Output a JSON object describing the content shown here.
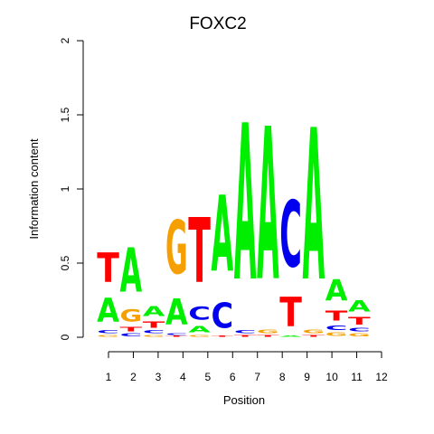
{
  "chart_data": {
    "type": "sequence-logo",
    "title": "FOXC2",
    "xlabel": "Position",
    "ylabel": "Information content",
    "ylim": [
      0,
      2
    ],
    "yticks": [
      "0",
      "0.5",
      "1",
      "1.5",
      "2"
    ],
    "positions": [
      "1",
      "2",
      "3",
      "4",
      "5",
      "6",
      "7",
      "8",
      "9",
      "10",
      "11",
      "12"
    ],
    "colors": {
      "A": "#00ee00",
      "C": "#0000ee",
      "G": "#f5a000",
      "T": "#ff0000"
    },
    "letters": [
      [
        {
          "base": "G",
          "height": 0.02
        },
        {
          "base": "C",
          "height": 0.03
        },
        {
          "base": "A",
          "height": 0.26
        },
        {
          "base": "T",
          "height": 0.32
        }
      ],
      [
        {
          "base": "C",
          "height": 0.03
        },
        {
          "base": "T",
          "height": 0.05
        },
        {
          "base": "G",
          "height": 0.13
        },
        {
          "base": "A",
          "height": 0.48
        }
      ],
      [
        {
          "base": "G",
          "height": 0.02
        },
        {
          "base": "C",
          "height": 0.03
        },
        {
          "base": "T",
          "height": 0.07
        },
        {
          "base": "A",
          "height": 0.11
        }
      ],
      [
        {
          "base": "T",
          "height": 0.01
        },
        {
          "base": "C",
          "height": 0.02
        },
        {
          "base": "A",
          "height": 0.28
        },
        {
          "base": "G",
          "height": 0.58
        }
      ],
      [
        {
          "base": "G",
          "height": 0.02
        },
        {
          "base": "A",
          "height": 0.07
        },
        {
          "base": "C",
          "height": 0.14
        },
        {
          "base": "T",
          "height": 0.7
        }
      ],
      [
        {
          "base": "T",
          "height": 0.01
        },
        {
          "base": "C",
          "height": 0.27
        },
        {
          "base": "A",
          "height": 0.82
        }
      ],
      [
        {
          "base": "T",
          "height": 0.02
        },
        {
          "base": "C",
          "height": 0.03
        },
        {
          "base": "A",
          "height": 1.69
        }
      ],
      [
        {
          "base": "T",
          "height": 0.02
        },
        {
          "base": "G",
          "height": 0.04
        },
        {
          "base": "A",
          "height": 1.65
        }
      ],
      [
        {
          "base": "A",
          "height": 0.01
        },
        {
          "base": "T",
          "height": 0.32
        },
        {
          "base": "C",
          "height": 0.72
        }
      ],
      [
        {
          "base": "T",
          "height": 0.02
        },
        {
          "base": "G",
          "height": 0.04
        },
        {
          "base": "A",
          "height": 1.64
        }
      ],
      [
        {
          "base": "G",
          "height": 0.04
        },
        {
          "base": "C",
          "height": 0.05
        },
        {
          "base": "T",
          "height": 0.11
        },
        {
          "base": "A",
          "height": 0.23
        }
      ],
      [
        {
          "base": "G",
          "height": 0.03
        },
        {
          "base": "C",
          "height": 0.04
        },
        {
          "base": "T",
          "height": 0.08
        },
        {
          "base": "A",
          "height": 0.12
        }
      ]
    ]
  }
}
